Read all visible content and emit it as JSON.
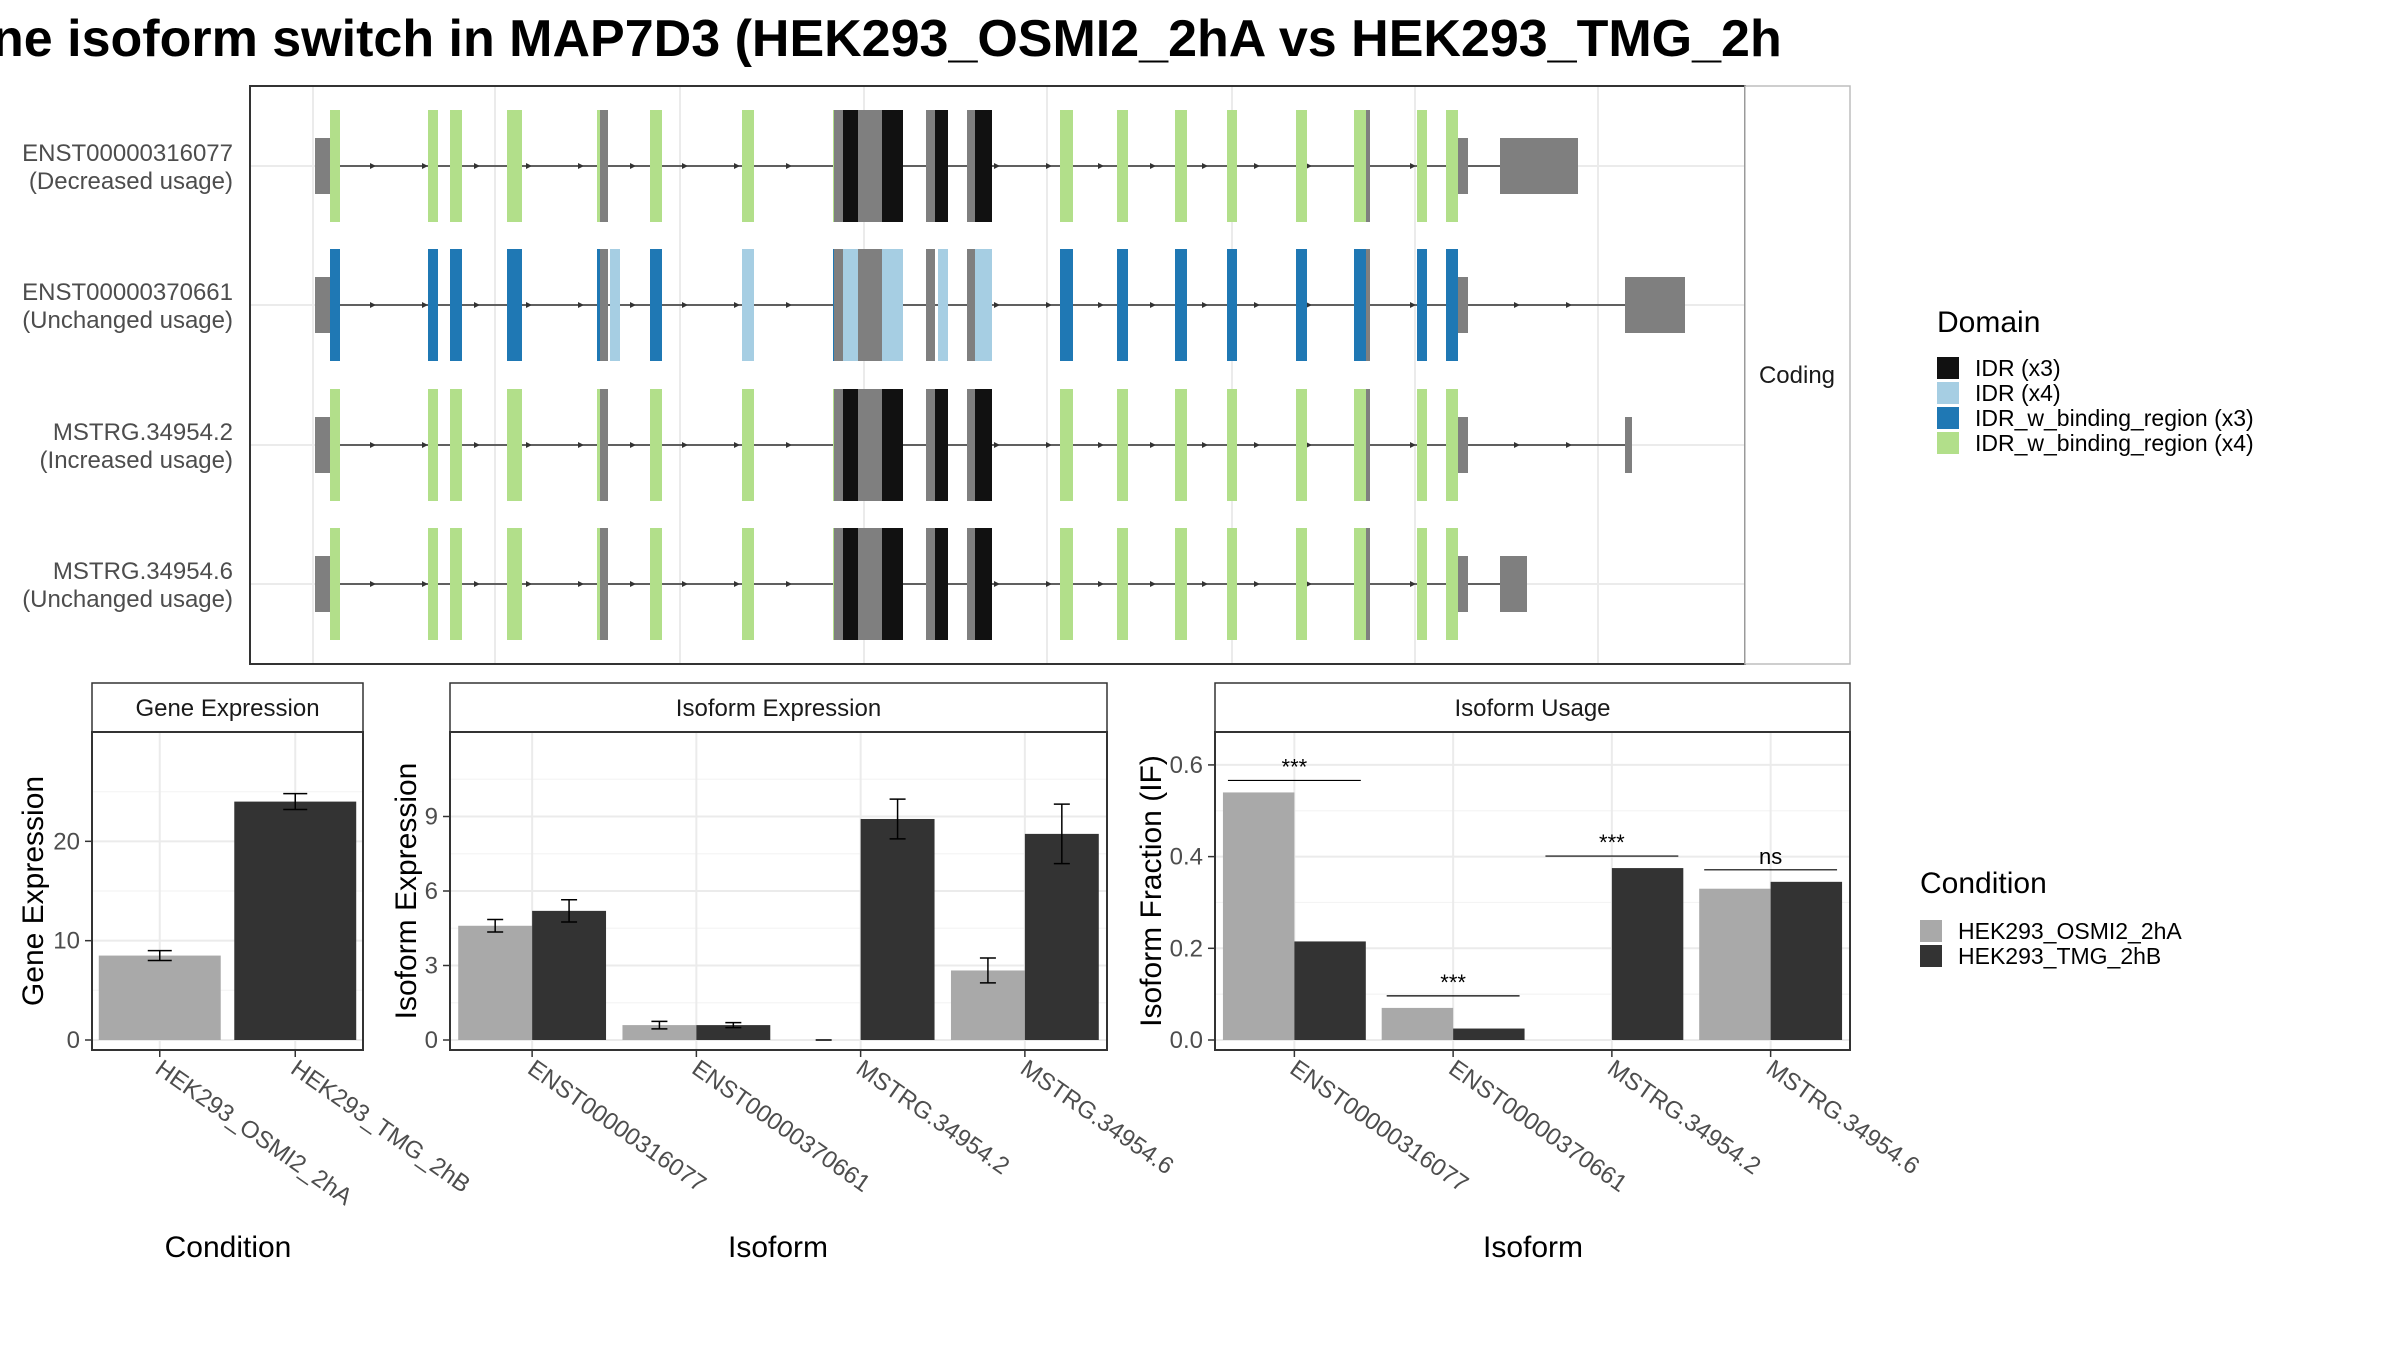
{
  "title": "ne isoform switch in MAP7D3 (HEK293_OSMI2_2hA vs HEK293_TMG_2h",
  "colors": {
    "cond_a": "#a9a9a9",
    "cond_b": "#333333",
    "utr": "#7f7f7f",
    "idr_x3": "#111111",
    "idr_x4": "#a6cee3",
    "idr_bind_x3": "#1f78b4",
    "idr_bind_x4": "#b2df8a"
  },
  "structure_panel": {
    "strip_label": "Coding",
    "isoforms": [
      {
        "name": "ENST00000316077",
        "usage": "(Decreased usage)",
        "domain_set": "x4_black"
      },
      {
        "name": "ENST00000370661",
        "usage": "(Unchanged usage)",
        "domain_set": "x3_blue"
      },
      {
        "name": "MSTRG.34954.2",
        "usage": "(Increased usage)",
        "domain_set": "x4_black"
      },
      {
        "name": "MSTRG.34954.6",
        "usage": "(Unchanged usage)",
        "domain_set": "x4_black"
      }
    ]
  },
  "domain_legend": {
    "title": "Domain",
    "items": [
      {
        "label": "IDR (x3)",
        "color": "#111111"
      },
      {
        "label": "IDR (x4)",
        "color": "#a6cee3"
      },
      {
        "label": "IDR_w_binding_region (x3)",
        "color": "#1f78b4"
      },
      {
        "label": "IDR_w_binding_region (x4)",
        "color": "#b2df8a"
      }
    ]
  },
  "condition_legend": {
    "title": "Condition",
    "items": [
      {
        "label": "HEK293_OSMI2_2hA",
        "color": "#a9a9a9"
      },
      {
        "label": "HEK293_TMG_2hB",
        "color": "#333333"
      }
    ]
  },
  "chart_data": [
    {
      "type": "bar",
      "title": "Gene Expression",
      "xlabel": "Condition",
      "ylabel": "Gene Expression",
      "categories": [
        "HEK293_OSMI2_2hA",
        "HEK293_TMG_2hB"
      ],
      "values": [
        8.5,
        24.0
      ],
      "errors": [
        0.5,
        0.8
      ],
      "ylim": [
        0,
        30
      ],
      "yticks": [
        0,
        10,
        20
      ]
    },
    {
      "type": "bar",
      "title": "Isoform Expression",
      "xlabel": "Isoform",
      "ylabel": "Isoform Expression",
      "categories": [
        "ENST00000316077",
        "ENST00000370661",
        "MSTRG.34954.2",
        "MSTRG.34954.6"
      ],
      "series": [
        {
          "name": "HEK293_OSMI2_2hA",
          "values": [
            4.6,
            0.6,
            0.0,
            2.8
          ],
          "errors": [
            0.25,
            0.15,
            0.0,
            0.5
          ]
        },
        {
          "name": "HEK293_TMG_2hB",
          "values": [
            5.2,
            0.6,
            8.9,
            8.3
          ],
          "errors": [
            0.45,
            0.1,
            0.8,
            1.2
          ]
        }
      ],
      "ylim": [
        0,
        12
      ],
      "yticks": [
        0,
        3,
        6,
        9
      ]
    },
    {
      "type": "bar",
      "title": "Isoform Usage",
      "xlabel": "Isoform",
      "ylabel": "Isoform Fraction (IF)",
      "categories": [
        "ENST00000316077",
        "ENST00000370661",
        "MSTRG.34954.2",
        "MSTRG.34954.6"
      ],
      "series": [
        {
          "name": "HEK293_OSMI2_2hA",
          "values": [
            0.54,
            0.07,
            0.0,
            0.33
          ]
        },
        {
          "name": "HEK293_TMG_2hB",
          "values": [
            0.215,
            0.025,
            0.375,
            0.345
          ]
        }
      ],
      "significance": [
        "***",
        "***",
        "***",
        "ns"
      ],
      "ylim": [
        0,
        0.65
      ],
      "yticks": [
        "0.0",
        "0.2",
        "0.4",
        "0.6"
      ]
    }
  ]
}
